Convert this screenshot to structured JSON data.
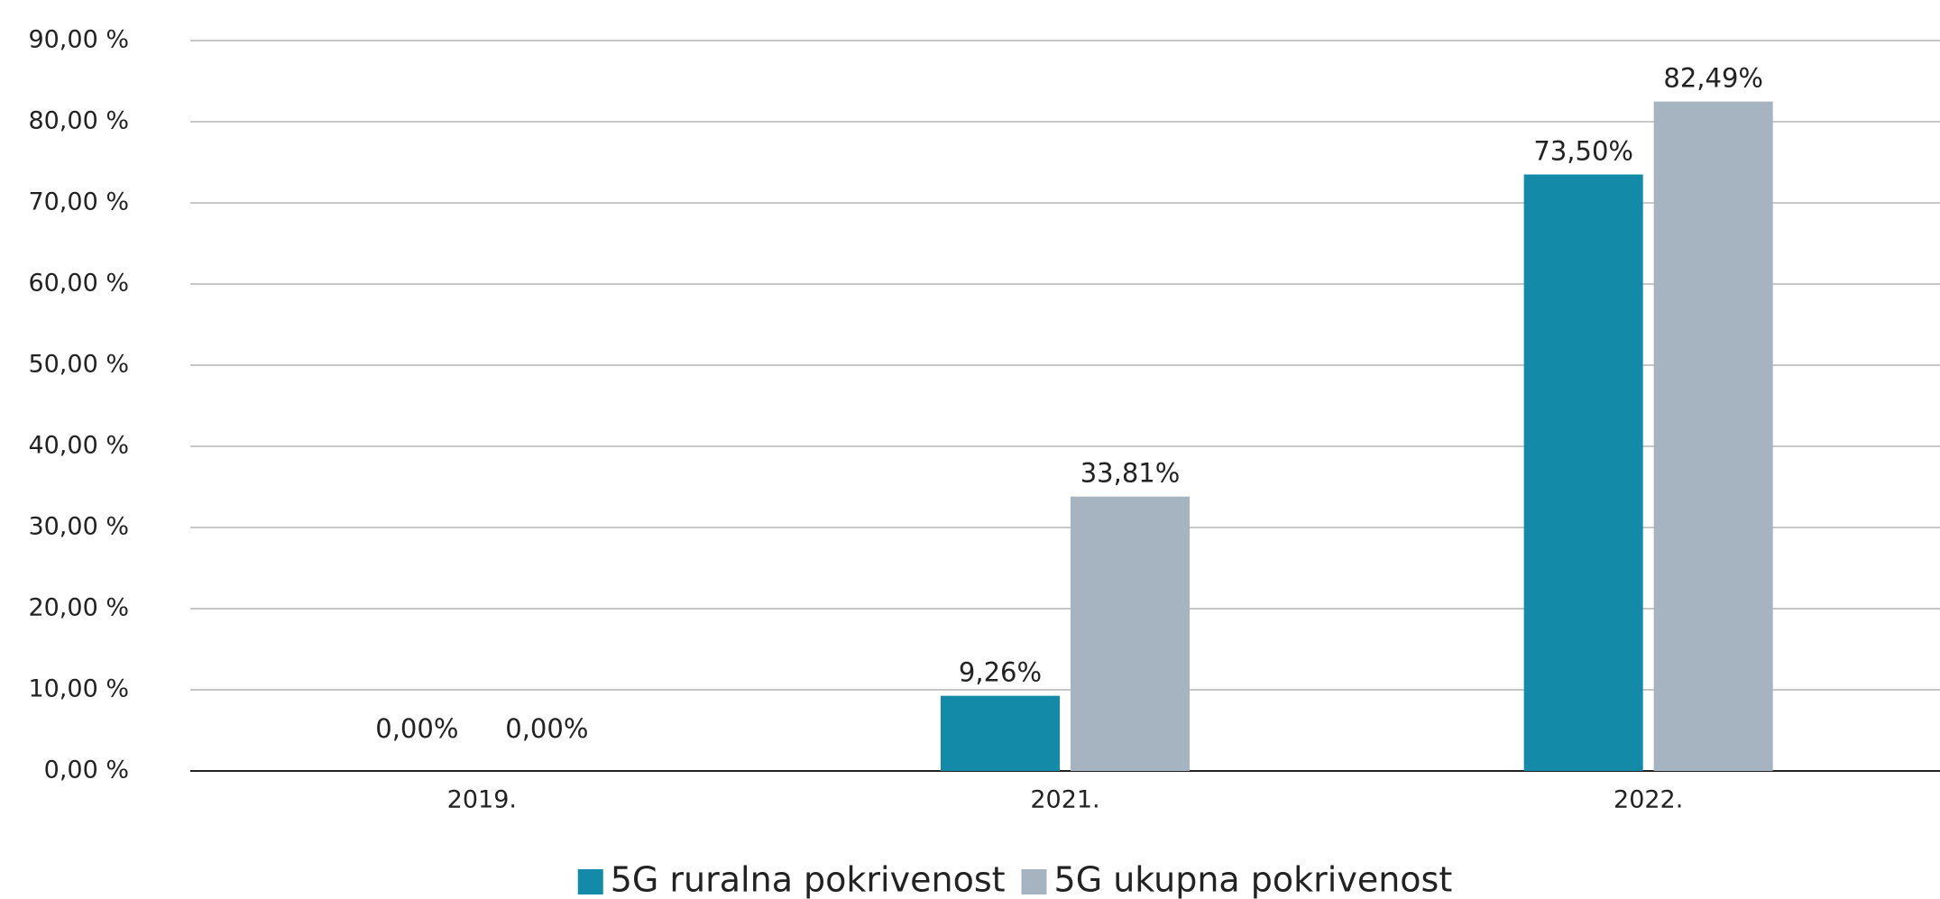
{
  "chart_data": {
    "type": "bar",
    "categories": [
      "2019.",
      "2021.",
      "2022."
    ],
    "series": [
      {
        "name": "5G ruralna pokrivenost",
        "color": "#138aa8",
        "values": [
          0,
          9.26,
          73.5
        ],
        "value_labels": [
          "0,00%",
          "9,26%",
          "73,50%"
        ]
      },
      {
        "name": "5G ukupna pokrivenost",
        "color": "#a5b4c0",
        "values": [
          0,
          33.81,
          82.49
        ],
        "value_labels": [
          "0,00%",
          "33,81%",
          "82,49%"
        ]
      }
    ],
    "ylim": [
      0,
      90
    ],
    "yticks": [
      {
        "value": 0,
        "label": "0,00 %"
      },
      {
        "value": 10,
        "label": "10,00 %"
      },
      {
        "value": 20,
        "label": "20,00 %"
      },
      {
        "value": 30,
        "label": "30,00 %"
      },
      {
        "value": 40,
        "label": "40,00 %"
      },
      {
        "value": 50,
        "label": "50,00 %"
      },
      {
        "value": 60,
        "label": "60,00 %"
      },
      {
        "value": 70,
        "label": "70,00 %"
      },
      {
        "value": 80,
        "label": "80,00 %"
      },
      {
        "value": 90,
        "label": "90,00 %"
      }
    ],
    "grid": true,
    "legend": "bottom"
  }
}
